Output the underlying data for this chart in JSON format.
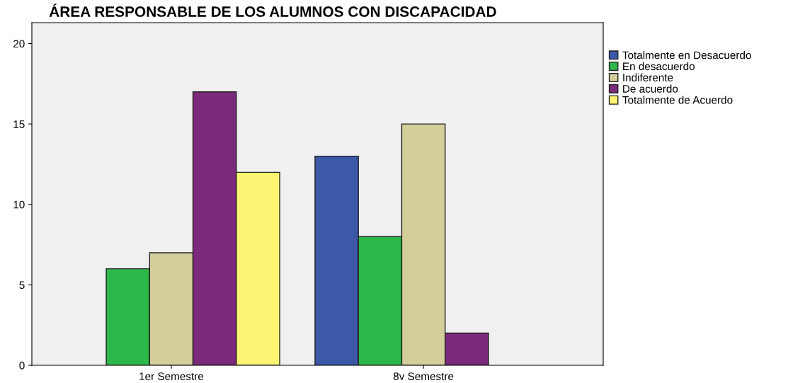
{
  "chart_data": {
    "type": "bar",
    "title": "ÁREA RESPONSABLE DE LOS ALUMNOS CON DISCAPACIDAD",
    "categories": [
      "1er Semestre",
      "8v Semestre"
    ],
    "series": [
      {
        "name": "Totalmente en Desacuerdo",
        "color": "#3c58a8",
        "values": [
          null,
          13
        ]
      },
      {
        "name": "En desacuerdo",
        "color": "#2db84a",
        "values": [
          6,
          8
        ]
      },
      {
        "name": "Indiferente",
        "color": "#d4cf9a",
        "values": [
          7,
          15
        ]
      },
      {
        "name": "De acuerdo",
        "color": "#7b2a7b",
        "values": [
          17,
          2
        ]
      },
      {
        "name": "Totalmente de Acuerdo",
        "color": "#fbf573",
        "values": [
          12,
          null
        ]
      }
    ],
    "ylim": [
      0,
      21.3
    ],
    "yticks": [
      0,
      5,
      10,
      15,
      20
    ],
    "grid": false,
    "legend": "top right"
  }
}
